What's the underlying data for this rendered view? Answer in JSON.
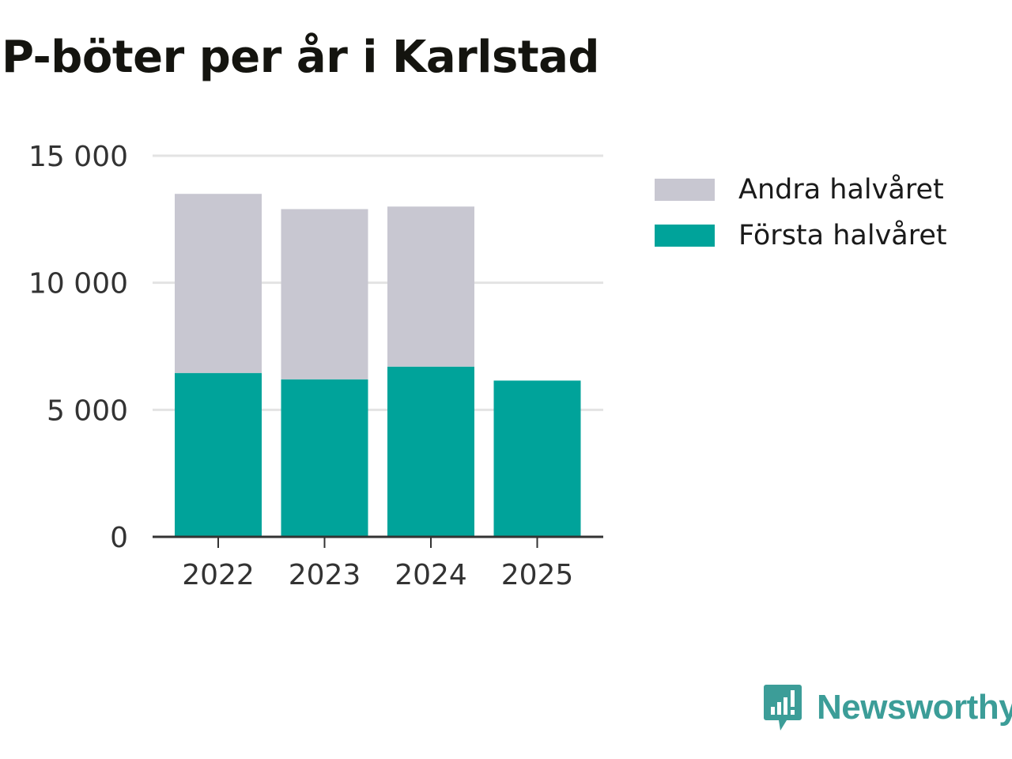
{
  "colors": {
    "first_half": "#00a39a",
    "second_half": "#c8c7d1",
    "grid": "#e3e3e3",
    "axis": "#333333",
    "brand": "#3c9d98"
  },
  "chart_data": {
    "type": "bar",
    "stacked": true,
    "title": "P-böter per år i Karlstad",
    "xlabel": "",
    "ylabel": "",
    "categories": [
      "2022",
      "2023",
      "2024",
      "2025"
    ],
    "series": [
      {
        "name": "Första halvåret",
        "values": [
          6450,
          6200,
          6700,
          6150
        ]
      },
      {
        "name": "Andra halvåret",
        "values": [
          7050,
          6700,
          6300,
          0
        ]
      }
    ],
    "ylim": [
      0,
      15000
    ],
    "yticks": [
      0,
      5000,
      10000,
      15000
    ],
    "ytick_labels": [
      "0",
      "5 000",
      "10 000",
      "15 000"
    ],
    "grid": true,
    "legend": {
      "placement": "right",
      "entries": [
        "Andra halvåret",
        "Första halvåret"
      ]
    }
  },
  "branding": {
    "name": "Newsworthy",
    "icon": "newsworthy-logo-icon"
  }
}
